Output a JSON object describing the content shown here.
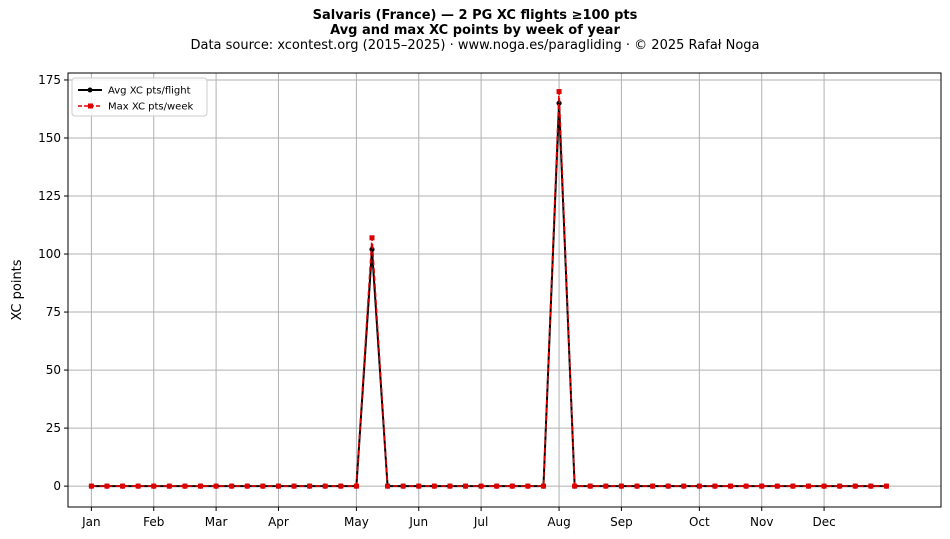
{
  "header": {
    "title_line1": "Salvaris (France)  —  2 PG XC flights ≥100 pts",
    "title_line2": "Avg and max XC points by week of year",
    "subtitle": "Data source: xcontest.org (2015–2025)  ·  www.noga.es/paragliding  ·  © 2025 Rafał Noga"
  },
  "chart_data": {
    "type": "line",
    "title": "Salvaris (France)  —  2 PG XC flights ≥100 pts\nAvg and max XC points by week of year",
    "subtitle": "Data source: xcontest.org (2015–2025)  ·  www.noga.es/paragliding  ·  © 2025 Rafał Noga",
    "xlabel": "",
    "ylabel": "XC points",
    "xlim": [
      -1.5,
      54.5
    ],
    "ylim": [
      -9,
      178
    ],
    "yticks": [
      0,
      25,
      50,
      75,
      100,
      125,
      150,
      175
    ],
    "month_labels": [
      "Jan",
      "Feb",
      "Mar",
      "Apr",
      "May",
      "Jun",
      "Jul",
      "Aug",
      "Sep",
      "Oct",
      "Nov",
      "Dec"
    ],
    "month_week_positions": [
      0,
      4,
      8,
      12,
      17,
      21,
      25,
      30,
      34,
      39,
      43,
      47
    ],
    "grid": true,
    "legend_position": "upper left",
    "x": [
      0,
      1,
      2,
      3,
      4,
      5,
      6,
      7,
      8,
      9,
      10,
      11,
      12,
      13,
      14,
      15,
      16,
      17,
      18,
      19,
      20,
      21,
      22,
      23,
      24,
      25,
      26,
      27,
      28,
      29,
      30,
      31,
      32,
      33,
      34,
      35,
      36,
      37,
      38,
      39,
      40,
      41,
      42,
      43,
      44,
      45,
      46,
      47,
      48,
      49,
      50,
      51
    ],
    "series": [
      {
        "name": "Avg XC pts/flight",
        "color": "#000000",
        "style": "solid-circle",
        "values": [
          0,
          0,
          0,
          0,
          0,
          0,
          0,
          0,
          0,
          0,
          0,
          0,
          0,
          0,
          0,
          0,
          0,
          0,
          102,
          0,
          0,
          0,
          0,
          0,
          0,
          0,
          0,
          0,
          0,
          0,
          165,
          0,
          0,
          0,
          0,
          0,
          0,
          0,
          0,
          0,
          0,
          0,
          0,
          0,
          0,
          0,
          0,
          0,
          0,
          0,
          0,
          0
        ]
      },
      {
        "name": "Max XC pts/week",
        "color": "#e00000",
        "style": "dashed-square",
        "values": [
          0,
          0,
          0,
          0,
          0,
          0,
          0,
          0,
          0,
          0,
          0,
          0,
          0,
          0,
          0,
          0,
          0,
          0,
          107,
          0,
          0,
          0,
          0,
          0,
          0,
          0,
          0,
          0,
          0,
          0,
          170,
          0,
          0,
          0,
          0,
          0,
          0,
          0,
          0,
          0,
          0,
          0,
          0,
          0,
          0,
          0,
          0,
          0,
          0,
          0,
          0,
          0
        ]
      }
    ]
  }
}
